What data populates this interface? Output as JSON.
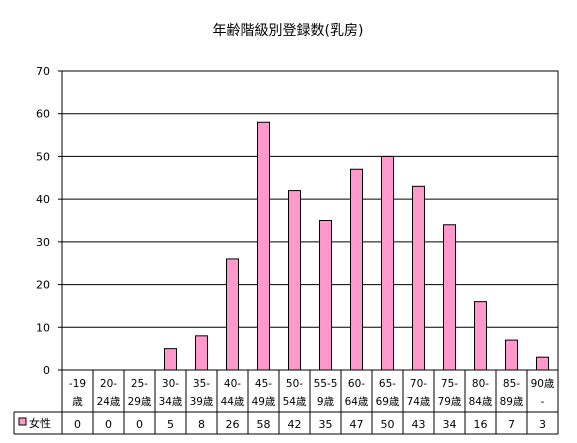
{
  "chart_data": {
    "type": "bar",
    "title": "年齢階級別登録数(乳房)",
    "categories": [
      [
        "-19",
        "歳"
      ],
      [
        "20-",
        "24歳"
      ],
      [
        "25-",
        "29歳"
      ],
      [
        "30-",
        "34歳"
      ],
      [
        "35-",
        "39歳"
      ],
      [
        "40-",
        "44歳"
      ],
      [
        "45-",
        "49歳"
      ],
      [
        "50-",
        "54歳"
      ],
      [
        "55-5",
        "9歳"
      ],
      [
        "60-",
        "64歳"
      ],
      [
        "65-",
        "69歳"
      ],
      [
        "70-",
        "74歳"
      ],
      [
        "75-",
        "79歳"
      ],
      [
        "80-",
        "84歳"
      ],
      [
        "85-",
        "89歳"
      ],
      [
        "90歳",
        "-"
      ]
    ],
    "series": [
      {
        "name": "女性",
        "values": [
          0,
          0,
          0,
          5,
          8,
          26,
          58,
          42,
          35,
          47,
          50,
          43,
          34,
          16,
          7,
          3
        ]
      }
    ],
    "ylim": [
      0,
      70
    ],
    "yticks": [
      "0",
      "10",
      "20",
      "30",
      "40",
      "50",
      "60",
      "70"
    ],
    "grid": true,
    "data_table": true,
    "colors": {
      "bar": "#ff99cc",
      "bar_stroke": "#000000",
      "grid": "#000000",
      "background": "#ffffff"
    }
  }
}
